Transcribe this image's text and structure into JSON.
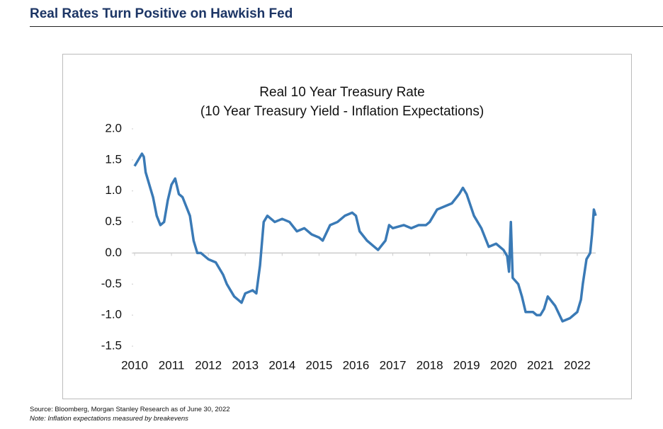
{
  "header": {
    "title": "Real Rates Turn Positive on Hawkish Fed"
  },
  "chart_data": {
    "type": "line",
    "title": "Real 10 Year Treasury Rate",
    "subtitle": "(10 Year Treasury Yield - Inflation Expectations)",
    "xlim": [
      2010,
      2022.5
    ],
    "xticks": [
      2010,
      2011,
      2012,
      2013,
      2014,
      2015,
      2016,
      2017,
      2018,
      2019,
      2020,
      2021,
      2022
    ],
    "ylim": [
      -1.5,
      2.0
    ],
    "yticks": [
      {
        "value": 2,
        "label": "2.0"
      },
      1.5,
      {
        "value": 1,
        "label": "1.0"
      },
      0.5,
      {
        "value": 0,
        "label": "0.0"
      },
      -0.5,
      {
        "value": -1,
        "label": "-1.0"
      },
      -1.5
    ],
    "series": [
      {
        "name": "Real 10 Year Treasury Rate",
        "color": "#3a7ab6",
        "x": [
          2010.0,
          2010.1,
          2010.2,
          2010.25,
          2010.3,
          2010.4,
          2010.5,
          2010.6,
          2010.7,
          2010.8,
          2010.9,
          2011.0,
          2011.1,
          2011.2,
          2011.3,
          2011.4,
          2011.5,
          2011.6,
          2011.7,
          2011.8,
          2011.9,
          2012.0,
          2012.2,
          2012.3,
          2012.4,
          2012.5,
          2012.6,
          2012.7,
          2012.8,
          2012.9,
          2013.0,
          2013.2,
          2013.3,
          2013.4,
          2013.5,
          2013.6,
          2013.7,
          2013.8,
          2014.0,
          2014.2,
          2014.4,
          2014.6,
          2014.8,
          2015.0,
          2015.1,
          2015.3,
          2015.5,
          2015.7,
          2015.9,
          2016.0,
          2016.1,
          2016.3,
          2016.5,
          2016.6,
          2016.8,
          2016.9,
          2017.0,
          2017.3,
          2017.5,
          2017.7,
          2017.9,
          2018.0,
          2018.2,
          2018.4,
          2018.6,
          2018.8,
          2018.9,
          2019.0,
          2019.2,
          2019.4,
          2019.6,
          2019.8,
          2020.0,
          2020.1,
          2020.15,
          2020.2,
          2020.25,
          2020.4,
          2020.5,
          2020.6,
          2020.8,
          2020.9,
          2021.0,
          2021.1,
          2021.2,
          2021.4,
          2021.6,
          2021.8,
          2021.9,
          2022.0,
          2022.1,
          2022.15,
          2022.25,
          2022.35,
          2022.4,
          2022.45,
          2022.5
        ],
        "values": [
          1.4,
          1.5,
          1.6,
          1.55,
          1.3,
          1.1,
          0.9,
          0.6,
          0.45,
          0.5,
          0.85,
          1.1,
          1.2,
          0.95,
          0.9,
          0.75,
          0.6,
          0.2,
          0.0,
          0.0,
          -0.05,
          -0.1,
          -0.15,
          -0.25,
          -0.35,
          -0.5,
          -0.6,
          -0.7,
          -0.75,
          -0.8,
          -0.65,
          -0.6,
          -0.65,
          -0.2,
          0.5,
          0.6,
          0.55,
          0.5,
          0.55,
          0.5,
          0.35,
          0.4,
          0.3,
          0.25,
          0.2,
          0.45,
          0.5,
          0.6,
          0.65,
          0.6,
          0.35,
          0.2,
          0.1,
          0.05,
          0.2,
          0.45,
          0.4,
          0.45,
          0.4,
          0.45,
          0.45,
          0.5,
          0.7,
          0.75,
          0.8,
          0.95,
          1.05,
          0.95,
          0.6,
          0.4,
          0.1,
          0.15,
          0.05,
          -0.05,
          -0.3,
          0.5,
          -0.4,
          -0.5,
          -0.7,
          -0.95,
          -0.95,
          -1.0,
          -1.0,
          -0.9,
          -0.7,
          -0.85,
          -1.1,
          -1.05,
          -1.0,
          -0.95,
          -0.75,
          -0.5,
          -0.1,
          0.0,
          0.3,
          0.7,
          0.6
        ]
      }
    ]
  },
  "footer": {
    "source": "Source: Bloomberg, Morgan Stanley Research as of June 30, 2022",
    "note": "Note: Inflation expectations measured by breakevens"
  }
}
